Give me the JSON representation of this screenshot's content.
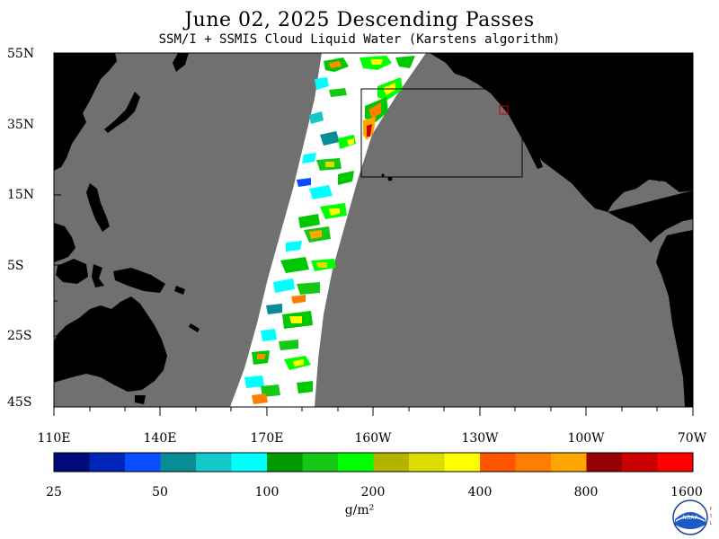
{
  "title": "June 02, 2025  Descending Passes",
  "subtitle": "SSM/I + SSMIS Cloud Liquid Water (Karstens algorithm)",
  "lat_labels": [
    "55N",
    "35N",
    "15N",
    "5S",
    "25S",
    "45S"
  ],
  "lon_labels": [
    "110E",
    "140E",
    "170E",
    "160W",
    "130W",
    "100W",
    "70W"
  ],
  "colorbar": {
    "tick_labels": [
      "25",
      "50",
      "100",
      "200",
      "400",
      "800",
      "1600"
    ],
    "units": "g/m²",
    "colors": [
      "#000a7a",
      "#0024b8",
      "#0a4cff",
      "#0a8c94",
      "#12c8c8",
      "#00ffff",
      "#009a00",
      "#16c816",
      "#00ff00",
      "#b4b400",
      "#dcdc00",
      "#ffff00",
      "#ff5500",
      "#ff7d00",
      "#ffa600",
      "#960000",
      "#cd0000",
      "#ff0000"
    ]
  },
  "colors": {
    "ocean": "#707070",
    "land": "#000000",
    "swath_background": "#ffffff",
    "box_highlight": "#cc0000"
  },
  "logo": {
    "lettering": "NOAA",
    "side_lettering": "PSL"
  }
}
